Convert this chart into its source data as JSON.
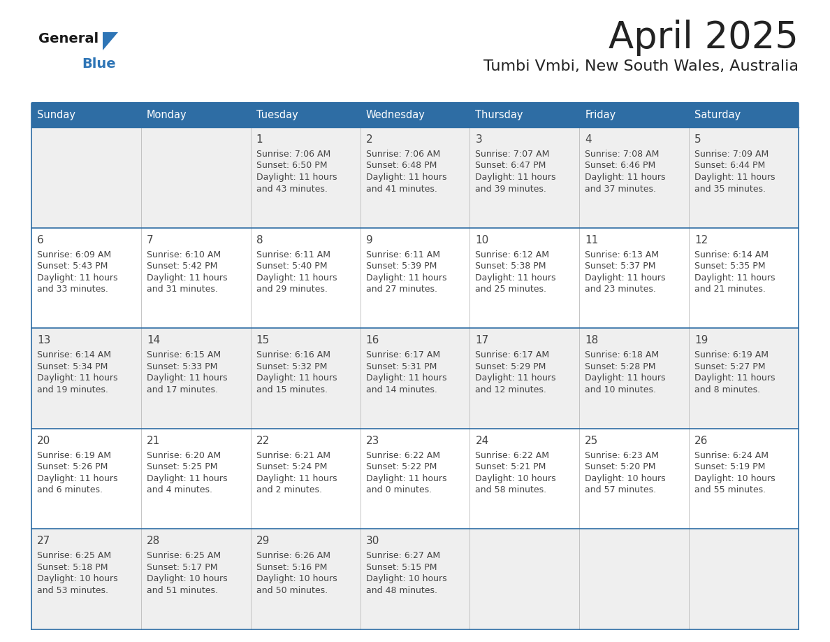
{
  "title": "April 2025",
  "subtitle": "Tumbi Vmbi, New South Wales, Australia",
  "days_of_week": [
    "Sunday",
    "Monday",
    "Tuesday",
    "Wednesday",
    "Thursday",
    "Friday",
    "Saturday"
  ],
  "header_bg": "#2E6DA4",
  "header_text": "#FFFFFF",
  "cell_bg_odd": "#EFEFEF",
  "cell_bg_even": "#FFFFFF",
  "line_color": "#2E6DA4",
  "text_color": "#444444",
  "title_color": "#222222",
  "logo_general_color": "#1a1a1a",
  "logo_blue_color": "#2E75B6",
  "calendar_data": {
    "1": {
      "sunrise": "7:06 AM",
      "sunset": "6:50 PM",
      "daylight_h": "11 hours",
      "daylight_m": "and 43 minutes."
    },
    "2": {
      "sunrise": "7:06 AM",
      "sunset": "6:48 PM",
      "daylight_h": "11 hours",
      "daylight_m": "and 41 minutes."
    },
    "3": {
      "sunrise": "7:07 AM",
      "sunset": "6:47 PM",
      "daylight_h": "11 hours",
      "daylight_m": "and 39 minutes."
    },
    "4": {
      "sunrise": "7:08 AM",
      "sunset": "6:46 PM",
      "daylight_h": "11 hours",
      "daylight_m": "and 37 minutes."
    },
    "5": {
      "sunrise": "7:09 AM",
      "sunset": "6:44 PM",
      "daylight_h": "11 hours",
      "daylight_m": "and 35 minutes."
    },
    "6": {
      "sunrise": "6:09 AM",
      "sunset": "5:43 PM",
      "daylight_h": "11 hours",
      "daylight_m": "and 33 minutes."
    },
    "7": {
      "sunrise": "6:10 AM",
      "sunset": "5:42 PM",
      "daylight_h": "11 hours",
      "daylight_m": "and 31 minutes."
    },
    "8": {
      "sunrise": "6:11 AM",
      "sunset": "5:40 PM",
      "daylight_h": "11 hours",
      "daylight_m": "and 29 minutes."
    },
    "9": {
      "sunrise": "6:11 AM",
      "sunset": "5:39 PM",
      "daylight_h": "11 hours",
      "daylight_m": "and 27 minutes."
    },
    "10": {
      "sunrise": "6:12 AM",
      "sunset": "5:38 PM",
      "daylight_h": "11 hours",
      "daylight_m": "and 25 minutes."
    },
    "11": {
      "sunrise": "6:13 AM",
      "sunset": "5:37 PM",
      "daylight_h": "11 hours",
      "daylight_m": "and 23 minutes."
    },
    "12": {
      "sunrise": "6:14 AM",
      "sunset": "5:35 PM",
      "daylight_h": "11 hours",
      "daylight_m": "and 21 minutes."
    },
    "13": {
      "sunrise": "6:14 AM",
      "sunset": "5:34 PM",
      "daylight_h": "11 hours",
      "daylight_m": "and 19 minutes."
    },
    "14": {
      "sunrise": "6:15 AM",
      "sunset": "5:33 PM",
      "daylight_h": "11 hours",
      "daylight_m": "and 17 minutes."
    },
    "15": {
      "sunrise": "6:16 AM",
      "sunset": "5:32 PM",
      "daylight_h": "11 hours",
      "daylight_m": "and 15 minutes."
    },
    "16": {
      "sunrise": "6:17 AM",
      "sunset": "5:31 PM",
      "daylight_h": "11 hours",
      "daylight_m": "and 14 minutes."
    },
    "17": {
      "sunrise": "6:17 AM",
      "sunset": "5:29 PM",
      "daylight_h": "11 hours",
      "daylight_m": "and 12 minutes."
    },
    "18": {
      "sunrise": "6:18 AM",
      "sunset": "5:28 PM",
      "daylight_h": "11 hours",
      "daylight_m": "and 10 minutes."
    },
    "19": {
      "sunrise": "6:19 AM",
      "sunset": "5:27 PM",
      "daylight_h": "11 hours",
      "daylight_m": "and 8 minutes."
    },
    "20": {
      "sunrise": "6:19 AM",
      "sunset": "5:26 PM",
      "daylight_h": "11 hours",
      "daylight_m": "and 6 minutes."
    },
    "21": {
      "sunrise": "6:20 AM",
      "sunset": "5:25 PM",
      "daylight_h": "11 hours",
      "daylight_m": "and 4 minutes."
    },
    "22": {
      "sunrise": "6:21 AM",
      "sunset": "5:24 PM",
      "daylight_h": "11 hours",
      "daylight_m": "and 2 minutes."
    },
    "23": {
      "sunrise": "6:22 AM",
      "sunset": "5:22 PM",
      "daylight_h": "11 hours",
      "daylight_m": "and 0 minutes."
    },
    "24": {
      "sunrise": "6:22 AM",
      "sunset": "5:21 PM",
      "daylight_h": "10 hours",
      "daylight_m": "and 58 minutes."
    },
    "25": {
      "sunrise": "6:23 AM",
      "sunset": "5:20 PM",
      "daylight_h": "10 hours",
      "daylight_m": "and 57 minutes."
    },
    "26": {
      "sunrise": "6:24 AM",
      "sunset": "5:19 PM",
      "daylight_h": "10 hours",
      "daylight_m": "and 55 minutes."
    },
    "27": {
      "sunrise": "6:25 AM",
      "sunset": "5:18 PM",
      "daylight_h": "10 hours",
      "daylight_m": "and 53 minutes."
    },
    "28": {
      "sunrise": "6:25 AM",
      "sunset": "5:17 PM",
      "daylight_h": "10 hours",
      "daylight_m": "and 51 minutes."
    },
    "29": {
      "sunrise": "6:26 AM",
      "sunset": "5:16 PM",
      "daylight_h": "10 hours",
      "daylight_m": "and 50 minutes."
    },
    "30": {
      "sunrise": "6:27 AM",
      "sunset": "5:15 PM",
      "daylight_h": "10 hours",
      "daylight_m": "and 48 minutes."
    }
  },
  "week_layout": [
    [
      null,
      null,
      1,
      2,
      3,
      4,
      5
    ],
    [
      6,
      7,
      8,
      9,
      10,
      11,
      12
    ],
    [
      13,
      14,
      15,
      16,
      17,
      18,
      19
    ],
    [
      20,
      21,
      22,
      23,
      24,
      25,
      26
    ],
    [
      27,
      28,
      29,
      30,
      null,
      null,
      null
    ]
  ]
}
